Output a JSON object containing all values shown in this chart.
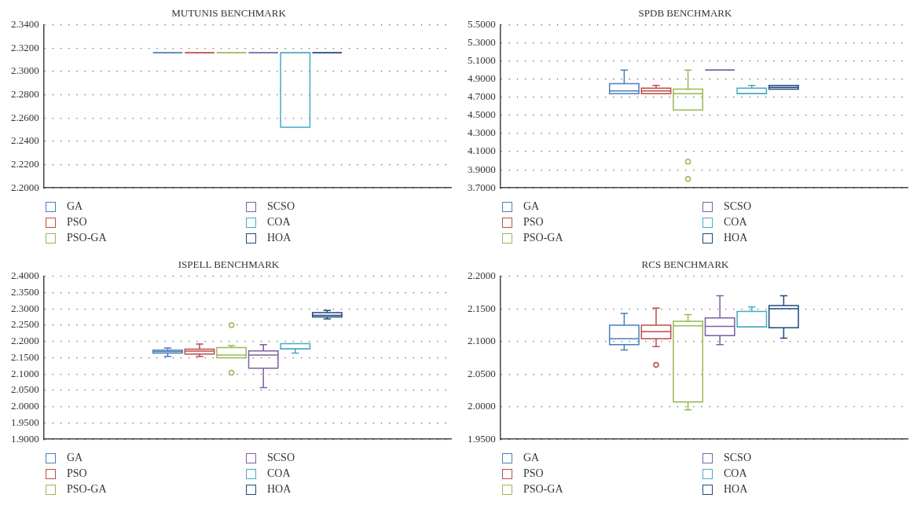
{
  "chart_data": [
    {
      "type": "box",
      "title": "MUTUNIS BENCHMARK",
      "categories": [
        null
      ],
      "ylim": [
        2.2,
        2.34
      ],
      "yticks": [
        {
          "value": 2.2,
          "label": "2.2000"
        },
        {
          "value": 2.22,
          "label": "2.2200"
        },
        {
          "value": 2.24,
          "label": "2.2400"
        },
        {
          "value": 2.26,
          "label": "2.2600"
        },
        {
          "value": 2.28,
          "label": "2.2800"
        },
        {
          "value": 2.3,
          "label": "2.3000"
        },
        {
          "value": 2.32,
          "label": "2.3200"
        },
        {
          "value": 2.34,
          "label": "2.3400"
        }
      ],
      "grid": "y",
      "legend": "bottom",
      "tick_labels": "y",
      "series": [
        {
          "name": "GA",
          "color": "#4a7ebb",
          "boxes": [
            {
              "low": 2.316,
              "q1": 2.316,
              "median": 2.316,
              "q3": 2.316,
              "high": 2.316
            }
          ]
        },
        {
          "name": "PSO",
          "color": "#be4b48",
          "boxes": [
            {
              "low": 2.316,
              "q1": 2.316,
              "median": 2.316,
              "q3": 2.316,
              "high": 2.316
            }
          ]
        },
        {
          "name": "PSO-GA",
          "color": "#98b954",
          "boxes": [
            {
              "low": 2.316,
              "q1": 2.316,
              "median": 2.316,
              "q3": 2.316,
              "high": 2.316
            }
          ]
        },
        {
          "name": "SCSO",
          "color": "#7d60a0",
          "boxes": [
            {
              "low": 2.316,
              "q1": 2.316,
              "median": 2.316,
              "q3": 2.316,
              "high": 2.316
            }
          ]
        },
        {
          "name": "COA",
          "color": "#46aac5",
          "boxes": [
            {
              "low": 2.252,
              "q1": 2.252,
              "median": 2.316,
              "q3": 2.316,
              "high": 2.316
            }
          ]
        },
        {
          "name": "HOA",
          "color": "#1f497d",
          "boxes": [
            {
              "low": 2.316,
              "q1": 2.316,
              "median": 2.316,
              "q3": 2.316,
              "high": 2.316
            }
          ]
        }
      ]
    },
    {
      "type": "box",
      "title": "SPDB BENCHMARK",
      "categories": [
        null
      ],
      "ylim": [
        3.7,
        5.5
      ],
      "yticks": [
        {
          "value": 3.7,
          "label": "3.7000"
        },
        {
          "value": 3.9,
          "label": "3.9000"
        },
        {
          "value": 4.1,
          "label": "4.1000"
        },
        {
          "value": 4.3,
          "label": "4.3000"
        },
        {
          "value": 4.5,
          "label": "4.5000"
        },
        {
          "value": 4.7,
          "label": "4.7000"
        },
        {
          "value": 4.9,
          "label": "4.9000"
        },
        {
          "value": 5.1,
          "label": "5.1000"
        },
        {
          "value": 5.3,
          "label": "5.3000"
        },
        {
          "value": 5.5,
          "label": "5.5000"
        }
      ],
      "grid": "y",
      "legend": "bottom",
      "tick_labels": "y",
      "series": [
        {
          "name": "GA",
          "color": "#4a7ebb",
          "boxes": [
            {
              "low": 4.74,
              "q1": 4.74,
              "median": 4.77,
              "q3": 4.85,
              "high": 5.0
            }
          ]
        },
        {
          "name": "PSO",
          "color": "#be4b48",
          "boxes": [
            {
              "low": 4.74,
              "q1": 4.74,
              "median": 4.77,
              "q3": 4.8,
              "high": 4.83
            }
          ]
        },
        {
          "name": "PSO-GA",
          "color": "#98b954",
          "boxes": [
            {
              "low": 4.56,
              "q1": 4.56,
              "median": 4.74,
              "q3": 4.79,
              "high": 5.0,
              "outliers": [
                3.99,
                3.8
              ]
            }
          ]
        },
        {
          "name": "SCSO",
          "color": "#7d60a0",
          "boxes": [
            {
              "low": 5.0,
              "q1": 5.0,
              "median": 5.0,
              "q3": 5.0,
              "high": 5.0
            }
          ]
        },
        {
          "name": "COA",
          "color": "#46aac5",
          "boxes": [
            {
              "low": 4.74,
              "q1": 4.74,
              "median": 4.74,
              "q3": 4.8,
              "high": 4.83
            }
          ]
        },
        {
          "name": "HOA",
          "color": "#1f497d",
          "boxes": [
            {
              "low": 4.79,
              "q1": 4.79,
              "median": 4.81,
              "q3": 4.83,
              "high": 4.83
            }
          ]
        }
      ]
    },
    {
      "type": "box",
      "title": "ISPELL BENCHMARK",
      "categories": [
        null
      ],
      "ylim": [
        1.9,
        2.4
      ],
      "yticks": [
        {
          "value": 1.9,
          "label": "1.9000"
        },
        {
          "value": 1.95,
          "label": "1.9500"
        },
        {
          "value": 2.0,
          "label": "2.0000"
        },
        {
          "value": 2.05,
          "label": "2.0500"
        },
        {
          "value": 2.1,
          "label": "2.1000"
        },
        {
          "value": 2.15,
          "label": "2.1500"
        },
        {
          "value": 2.2,
          "label": "2.2000"
        },
        {
          "value": 2.25,
          "label": "2.2500"
        },
        {
          "value": 2.3,
          "label": "2.3000"
        },
        {
          "value": 2.35,
          "label": "2.3500"
        },
        {
          "value": 2.4,
          "label": "2.4000"
        }
      ],
      "grid": "y",
      "legend": "bottom",
      "tick_labels": "y",
      "series": [
        {
          "name": "GA",
          "color": "#4a7ebb",
          "boxes": [
            {
              "low": 2.154,
              "q1": 2.164,
              "median": 2.169,
              "q3": 2.173,
              "high": 2.18
            }
          ]
        },
        {
          "name": "PSO",
          "color": "#be4b48",
          "boxes": [
            {
              "low": 2.154,
              "q1": 2.161,
              "median": 2.17,
              "q3": 2.176,
              "high": 2.192
            }
          ]
        },
        {
          "name": "PSO-GA",
          "color": "#98b954",
          "boxes": [
            {
              "low": 2.15,
              "q1": 2.15,
              "median": 2.158,
              "q3": 2.181,
              "high": 2.187,
              "outliers": [
                2.25,
                2.104
              ]
            }
          ]
        },
        {
          "name": "SCSO",
          "color": "#7d60a0",
          "boxes": [
            {
              "low": 2.058,
              "q1": 2.118,
              "median": 2.158,
              "q3": 2.171,
              "high": 2.19
            }
          ]
        },
        {
          "name": "COA",
          "color": "#46aac5",
          "boxes": [
            {
              "low": 2.164,
              "q1": 2.177,
              "median": 2.177,
              "q3": 2.193,
              "high": 2.193
            }
          ]
        },
        {
          "name": "HOA",
          "color": "#1f497d",
          "boxes": [
            {
              "low": 2.269,
              "q1": 2.275,
              "median": 2.28,
              "q3": 2.288,
              "high": 2.295
            }
          ]
        }
      ]
    },
    {
      "type": "box",
      "title": "RCS BENCHMARK",
      "categories": [
        null
      ],
      "ylim": [
        1.95,
        2.2
      ],
      "yticks": [
        {
          "value": 1.95,
          "label": "1.9500"
        },
        {
          "value": 2.0,
          "label": "2.0000"
        },
        {
          "value": 2.05,
          "label": "2.0500"
        },
        {
          "value": 2.1,
          "label": "2.1000"
        },
        {
          "value": 2.15,
          "label": "2.1500"
        },
        {
          "value": 2.2,
          "label": "2.2000"
        }
      ],
      "grid": "y",
      "legend": "bottom",
      "tick_labels": "y",
      "series": [
        {
          "name": "GA",
          "color": "#4a7ebb",
          "boxes": [
            {
              "low": 2.087,
              "q1": 2.095,
              "median": 2.104,
              "q3": 2.125,
              "high": 2.143
            }
          ]
        },
        {
          "name": "PSO",
          "color": "#be4b48",
          "boxes": [
            {
              "low": 2.092,
              "q1": 2.104,
              "median": 2.115,
              "q3": 2.125,
              "high": 2.151,
              "outliers": [
                2.064
              ]
            }
          ]
        },
        {
          "name": "PSO-GA",
          "color": "#98b954",
          "boxes": [
            {
              "low": 1.995,
              "q1": 2.007,
              "median": 2.124,
              "q3": 2.131,
              "high": 2.141
            }
          ]
        },
        {
          "name": "SCSO",
          "color": "#7d60a0",
          "boxes": [
            {
              "low": 2.095,
              "q1": 2.109,
              "median": 2.123,
              "q3": 2.136,
              "high": 2.17
            }
          ]
        },
        {
          "name": "COA",
          "color": "#46aac5",
          "boxes": [
            {
              "low": 2.122,
              "q1": 2.122,
              "median": 2.122,
              "q3": 2.146,
              "high": 2.153
            }
          ]
        },
        {
          "name": "HOA",
          "color": "#1f497d",
          "boxes": [
            {
              "low": 2.105,
              "q1": 2.121,
              "median": 2.15,
              "q3": 2.155,
              "high": 2.17
            }
          ]
        }
      ]
    }
  ]
}
